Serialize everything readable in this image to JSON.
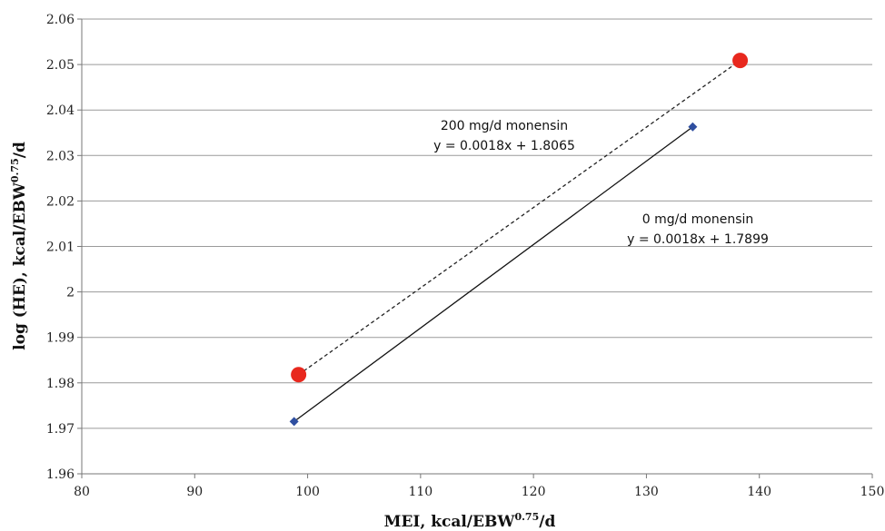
{
  "chart_data": {
    "type": "scatter",
    "title": "",
    "xlabel": {
      "main": "MEI, kcal/EBW",
      "sup": "0.75",
      "tail": "/d"
    },
    "ylabel": {
      "main": "log (HE), kcal/EBW",
      "sup": "0.75",
      "tail": "/d"
    },
    "xlim": [
      80,
      150
    ],
    "ylim": [
      1.96,
      2.06
    ],
    "xticks": [
      80,
      90,
      100,
      110,
      120,
      130,
      140,
      150
    ],
    "xtick_labels": [
      "80",
      "90",
      "100",
      "110",
      "120",
      "130",
      "140",
      "150"
    ],
    "yticks": [
      1.96,
      1.97,
      1.98,
      1.99,
      2.0,
      2.01,
      2.02,
      2.03,
      2.04,
      2.05,
      2.06
    ],
    "ytick_labels": [
      "1.96",
      "1.97",
      "1.98",
      "1.99",
      "2",
      "2.01",
      "2.02",
      "2.03",
      "2.04",
      "2.05",
      "2.06"
    ],
    "grid": "horizontal",
    "series": [
      {
        "marker": "circle",
        "color": "#e8281e",
        "line": "dashed",
        "line_color": "#222222",
        "points": [
          {
            "x": 99.2,
            "y": 1.9818
          },
          {
            "x": 138.3,
            "y": 2.0509
          }
        ],
        "annotation": [
          "200 mg/d monensin",
          "y = 0.0018x + 1.8065"
        ]
      },
      {
        "marker": "diamond",
        "color": "#2f4fa0",
        "line": "solid",
        "line_color": "#111111",
        "points": [
          {
            "x": 98.8,
            "y": 1.9715
          },
          {
            "x": 134.1,
            "y": 2.0363
          }
        ],
        "annotation": [
          "0 mg/d monensin",
          "y = 0.0018x + 1.7899"
        ]
      }
    ]
  }
}
